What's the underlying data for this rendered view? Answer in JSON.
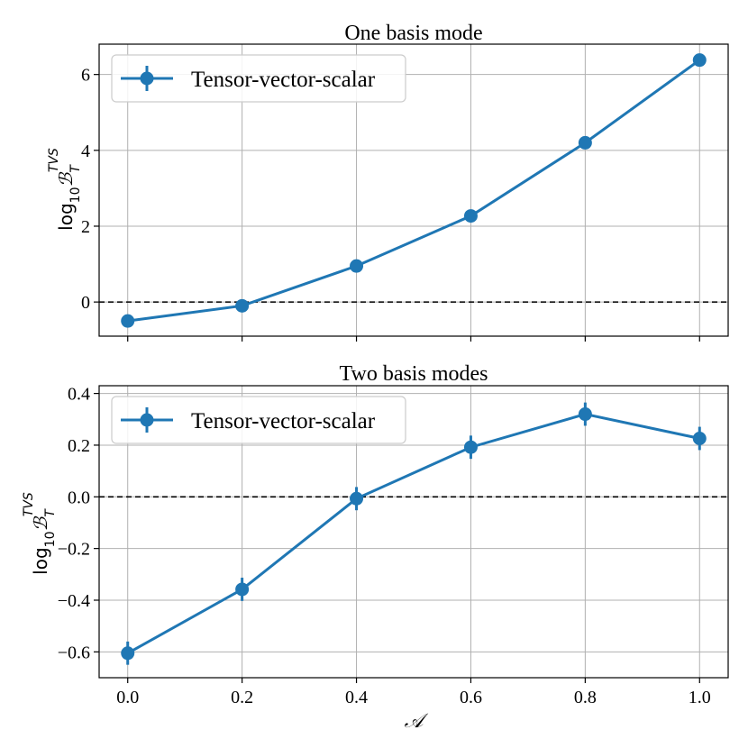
{
  "chart_data": [
    {
      "type": "line",
      "title": "One basis mode",
      "xlabel": "",
      "ylabel": "log",
      "ylabel_sub": "10",
      "ylabel_symbol": "ℬ",
      "ylabel_symbol_sub": "T",
      "ylabel_symbol_sup": "TVS",
      "x": [
        0.0,
        0.2,
        0.4,
        0.6,
        0.8,
        1.0
      ],
      "xlim": [
        -0.05,
        1.05
      ],
      "ylim": [
        -0.9,
        6.8
      ],
      "xticks": [
        0.0,
        0.2,
        0.4,
        0.6,
        0.8,
        1.0
      ],
      "xtick_labels": [
        "",
        "",
        "",
        "",
        "",
        ""
      ],
      "yticks": [
        0,
        2,
        4,
        6
      ],
      "ytick_labels": [
        "0",
        "2",
        "4",
        "6"
      ],
      "grid": true,
      "legend": "top-left",
      "reference_line": 0,
      "series": [
        {
          "name": "Tensor-vector-scalar",
          "color": "#1f77b4",
          "values": [
            -0.5,
            -0.1,
            0.95,
            2.27,
            4.2,
            6.38
          ],
          "errors": [
            0.08,
            0.08,
            0.08,
            0.08,
            0.08,
            0.08
          ]
        }
      ]
    },
    {
      "type": "line",
      "title": "Two basis modes",
      "xlabel": "𝒜",
      "ylabel": "log",
      "ylabel_sub": "10",
      "ylabel_symbol": "ℬ",
      "ylabel_symbol_sub": "T",
      "ylabel_symbol_sup": "TVS",
      "x": [
        0.0,
        0.2,
        0.4,
        0.6,
        0.8,
        1.0
      ],
      "xlim": [
        -0.05,
        1.05
      ],
      "ylim": [
        -0.7,
        0.43
      ],
      "xticks": [
        0.0,
        0.2,
        0.4,
        0.6,
        0.8,
        1.0
      ],
      "xtick_labels": [
        "0.0",
        "0.2",
        "0.4",
        "0.6",
        "0.8",
        "1.0"
      ],
      "yticks": [
        -0.6,
        -0.4,
        -0.2,
        0.0,
        0.2,
        0.4
      ],
      "ytick_labels": [
        "−0.6",
        "−0.4",
        "−0.2",
        "0.0",
        "0.2",
        "0.4"
      ],
      "grid": true,
      "legend": "top-left",
      "reference_line": 0,
      "series": [
        {
          "name": "Tensor-vector-scalar",
          "color": "#1f77b4",
          "values": [
            -0.605,
            -0.358,
            -0.007,
            0.192,
            0.32,
            0.226
          ],
          "errors": [
            0.045,
            0.045,
            0.045,
            0.045,
            0.045,
            0.045
          ]
        }
      ]
    }
  ]
}
